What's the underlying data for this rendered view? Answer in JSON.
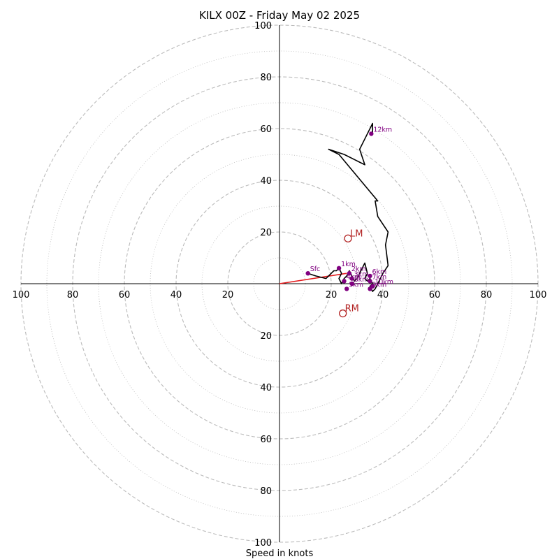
{
  "chart_data": {
    "type": "hodograph",
    "title": "KILX 00Z - Friday May 02 2025",
    "xlabel": "Speed in knots",
    "ring_max": 100,
    "ring_step": 10,
    "tick_labels": [
      "20",
      "40",
      "60",
      "80",
      "100"
    ],
    "grid": true,
    "colors": {
      "trace": "#000000",
      "markers": "#800080",
      "motion": "#b22222",
      "shear_vector": "#e31a1c",
      "grid": "#bbbbbb"
    },
    "trace": [
      [
        11,
        4
      ],
      [
        14,
        3
      ],
      [
        18,
        2
      ],
      [
        20,
        4
      ],
      [
        21,
        5
      ],
      [
        22,
        5
      ],
      [
        23,
        6
      ],
      [
        24,
        4
      ],
      [
        23,
        2
      ],
      [
        24,
        0
      ],
      [
        25,
        2
      ],
      [
        26,
        3
      ],
      [
        27,
        5
      ],
      [
        28,
        3
      ],
      [
        29,
        1
      ],
      [
        30,
        2
      ],
      [
        31,
        4
      ],
      [
        32,
        6
      ],
      [
        33,
        8
      ],
      [
        34,
        4
      ],
      [
        33,
        2
      ],
      [
        34,
        1
      ],
      [
        35,
        2
      ],
      [
        36,
        0
      ],
      [
        35,
        -1
      ],
      [
        36,
        -3
      ],
      [
        37,
        -2
      ],
      [
        38,
        0
      ],
      [
        40,
        4
      ],
      [
        42,
        7
      ],
      [
        41,
        15
      ],
      [
        42,
        20
      ],
      [
        38,
        26
      ],
      [
        37,
        32
      ],
      [
        38,
        32
      ],
      [
        33,
        38
      ],
      [
        28,
        44
      ],
      [
        23,
        50
      ],
      [
        19,
        52
      ],
      [
        25,
        50
      ],
      [
        31,
        47
      ],
      [
        33,
        46
      ],
      [
        32,
        49
      ],
      [
        31,
        52
      ],
      [
        33,
        56
      ],
      [
        36,
        62
      ],
      [
        36,
        58
      ]
    ],
    "height_markers": [
      {
        "label": "Sfc",
        "x": 11,
        "y": 4
      },
      {
        "label": "1km",
        "x": 23,
        "y": 6
      },
      {
        "label": "2km",
        "x": 27,
        "y": 4
      },
      {
        "label": "3km",
        "x": 28,
        "y": 2
      },
      {
        "label": "4km",
        "x": 25,
        "y": 1
      },
      {
        "label": "5km",
        "x": 26,
        "y": -2
      },
      {
        "label": "6km",
        "x": 35,
        "y": 3
      },
      {
        "label": "7km",
        "x": 35,
        "y": 1
      },
      {
        "label": "8km",
        "x": 28,
        "y": 0
      },
      {
        "label": "9km",
        "x": 35,
        "y": -2
      },
      {
        "label": "10km",
        "x": 36,
        "y": -1
      },
      {
        "label": "12km",
        "x": 35.5,
        "y": 58
      }
    ],
    "storm_motion": [
      {
        "label": "LM",
        "x": 26.5,
        "y": 17.5
      },
      {
        "label": "RM",
        "x": 24.5,
        "y": -11.5
      }
    ],
    "shear_vector": {
      "from": [
        0,
        0
      ],
      "to": [
        26,
        4
      ]
    }
  }
}
